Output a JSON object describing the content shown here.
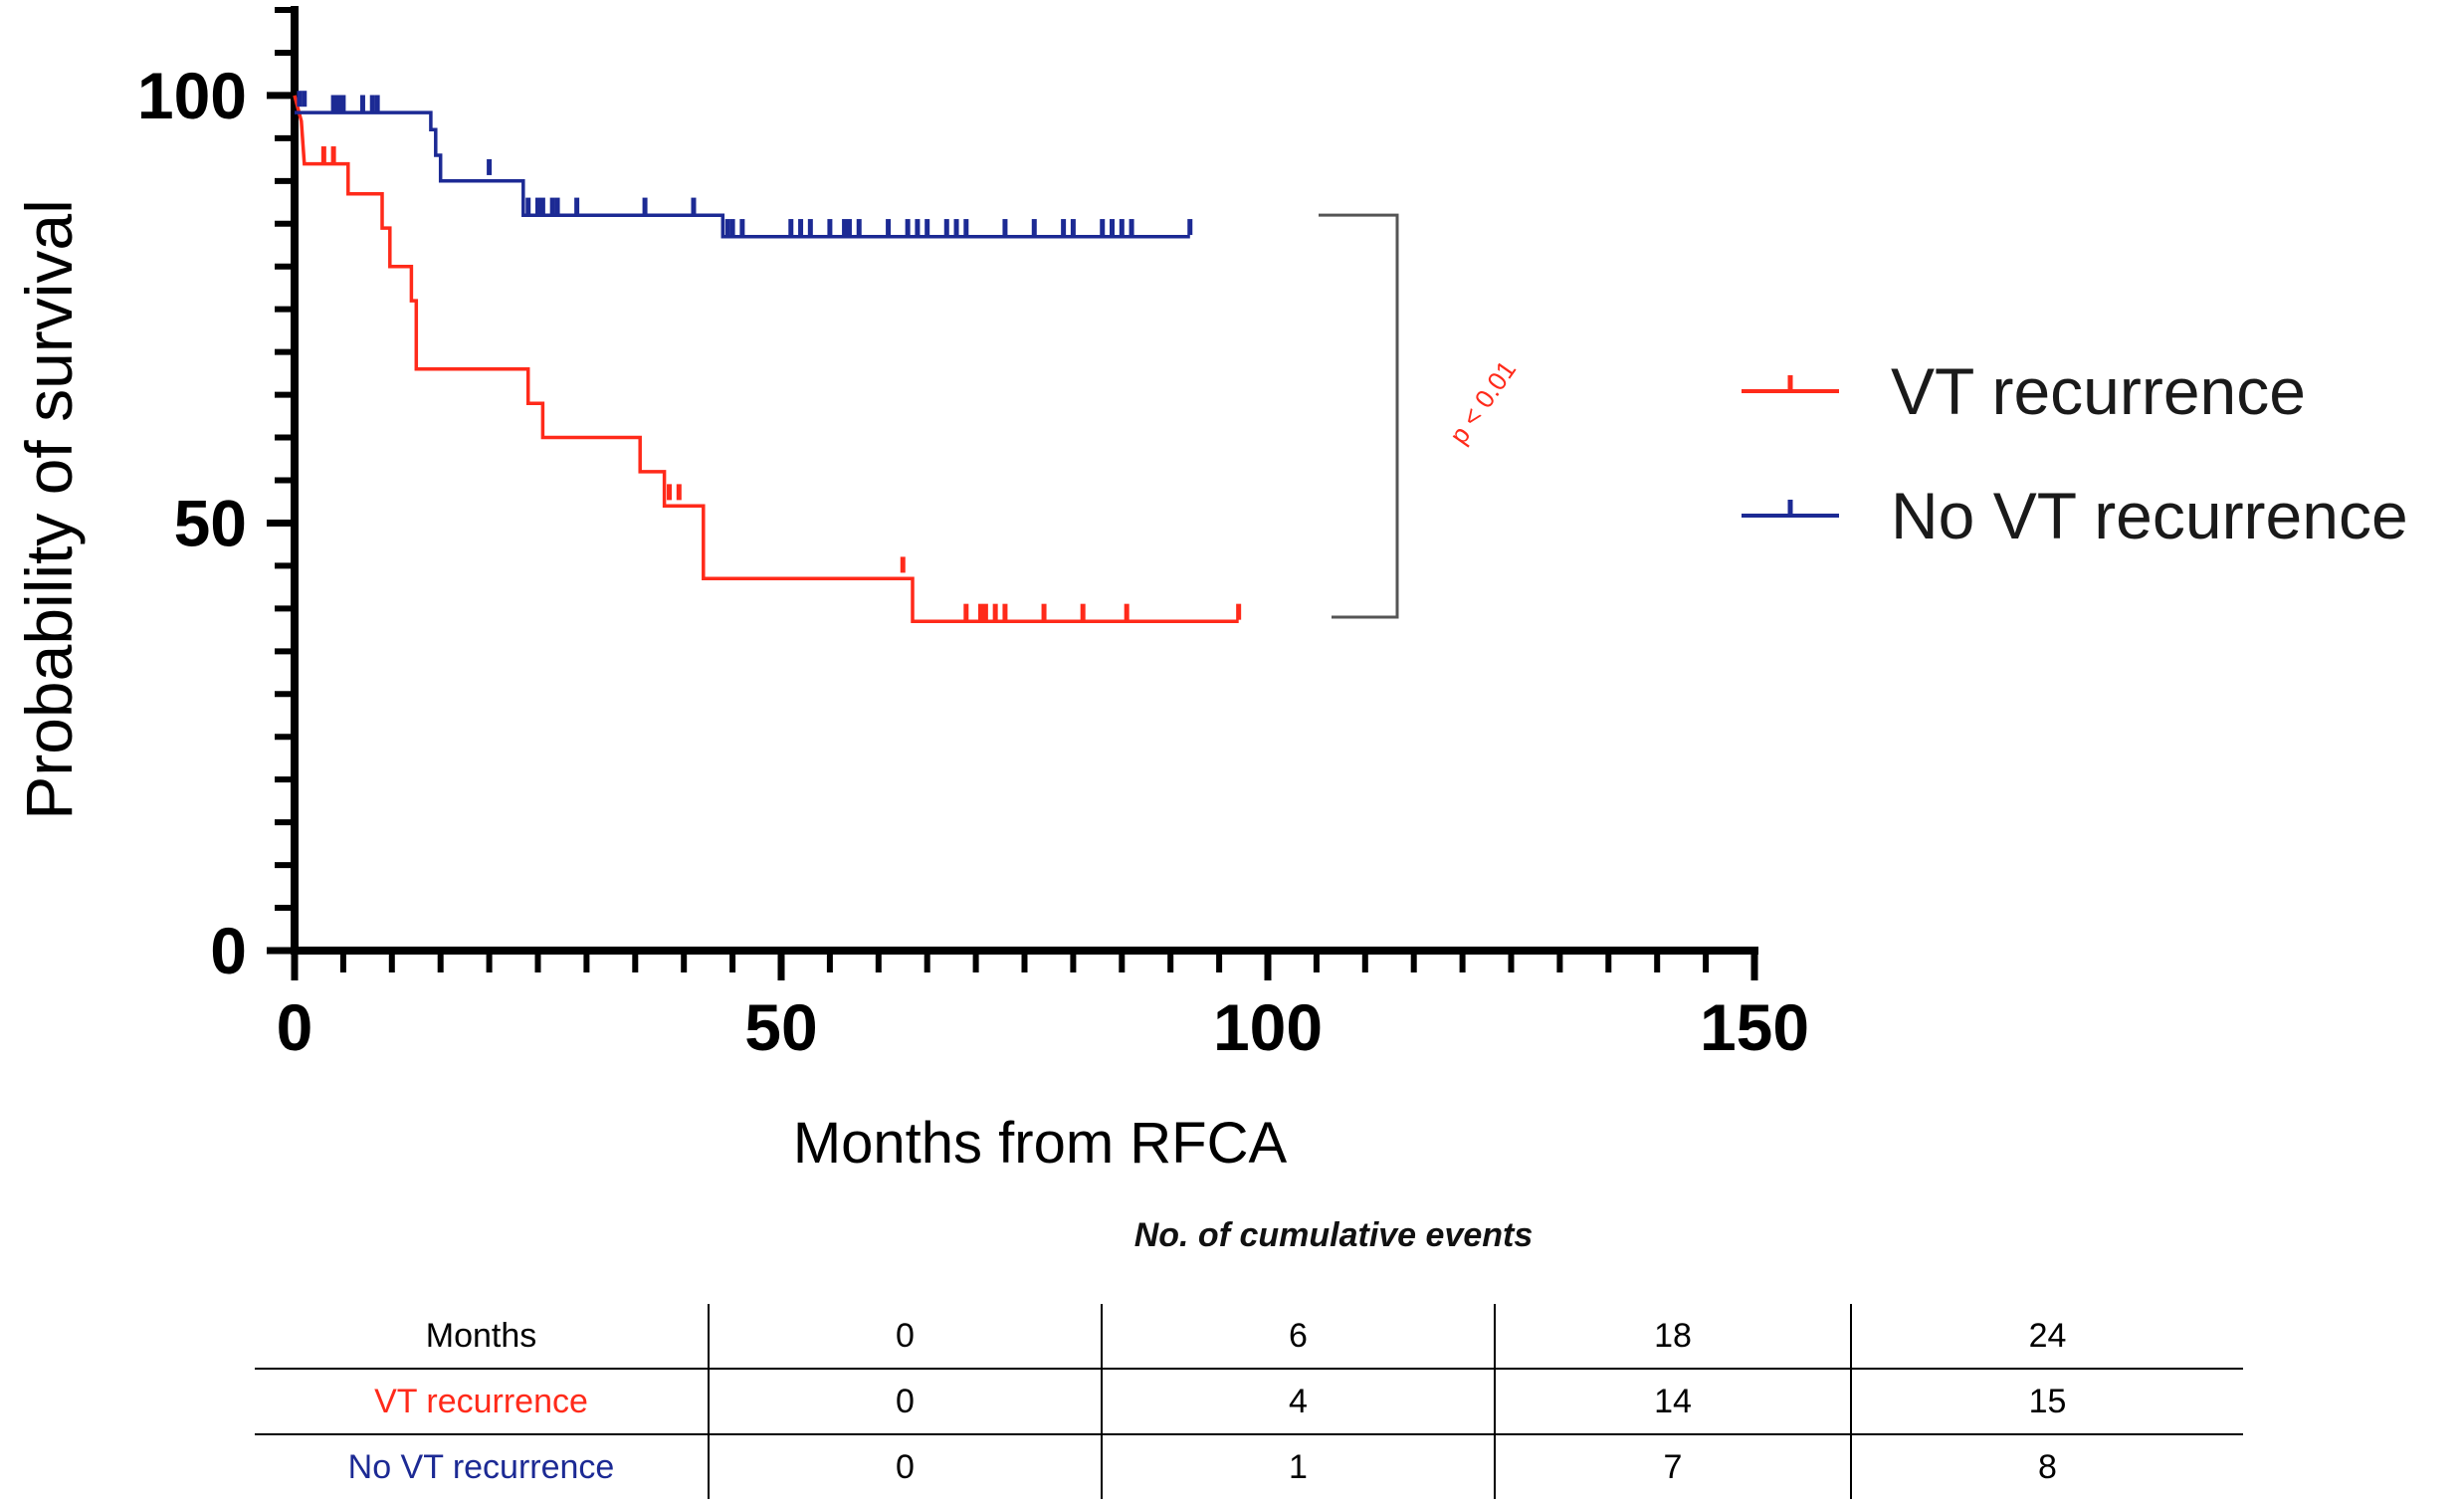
{
  "chart_data": {
    "type": "line",
    "subtype": "kaplan-meier",
    "xlabel": "Months from RFCA",
    "ylabel": "Probability of survival",
    "xlim": [
      0,
      150
    ],
    "ylim": [
      0,
      110
    ],
    "x_ticks": [
      0,
      50,
      100,
      150
    ],
    "y_ticks": [
      0,
      50,
      100
    ],
    "x_minor_step": 5,
    "y_minor_step": 5,
    "grid": false,
    "legend_position": "right",
    "series": [
      {
        "name": "VT recurrence",
        "color": "#ff2a1a",
        "steps": [
          [
            0,
            100
          ],
          [
            0.7,
            97
          ],
          [
            1,
            92
          ],
          [
            5.5,
            92
          ],
          [
            5.5,
            88.5
          ],
          [
            9,
            88.5
          ],
          [
            9,
            84.5
          ],
          [
            9.8,
            84.5
          ],
          [
            9.8,
            80
          ],
          [
            12,
            80
          ],
          [
            12,
            76
          ],
          [
            12.5,
            76
          ],
          [
            12.5,
            68
          ],
          [
            24,
            68
          ],
          [
            24,
            64
          ],
          [
            25.5,
            64
          ],
          [
            25.5,
            60
          ],
          [
            35.5,
            60
          ],
          [
            35.5,
            56
          ],
          [
            38,
            56
          ],
          [
            38,
            52
          ],
          [
            42,
            52
          ],
          [
            42,
            43.5
          ],
          [
            63.5,
            43.5
          ],
          [
            63.5,
            38.5
          ],
          [
            97,
            38.5
          ]
        ],
        "censored": [
          [
            3,
            93
          ],
          [
            4,
            93
          ],
          [
            38.5,
            53.5
          ],
          [
            39.5,
            53.5
          ],
          [
            62.5,
            45
          ],
          [
            69,
            39.5
          ],
          [
            70.5,
            39.5
          ],
          [
            71,
            39.5
          ],
          [
            72,
            39.5
          ],
          [
            73,
            39.5
          ],
          [
            77,
            39.5
          ],
          [
            81,
            39.5
          ],
          [
            85.5,
            39.5
          ],
          [
            97,
            39.5
          ]
        ]
      },
      {
        "name": "No VT recurrence",
        "color": "#1c2a94",
        "steps": [
          [
            0,
            98
          ],
          [
            14,
            98
          ],
          [
            14,
            96
          ],
          [
            14.5,
            96
          ],
          [
            14.5,
            93
          ],
          [
            15,
            93
          ],
          [
            15,
            90
          ],
          [
            23.5,
            90
          ],
          [
            23.5,
            86
          ],
          [
            44,
            86
          ],
          [
            44,
            83.5
          ],
          [
            92,
            83.5
          ]
        ],
        "censored": [
          [
            0.5,
            99.5
          ],
          [
            1,
            99.5
          ],
          [
            4,
            99
          ],
          [
            4.5,
            99
          ],
          [
            5,
            99
          ],
          [
            7,
            99
          ],
          [
            8,
            99
          ],
          [
            8.5,
            99
          ],
          [
            20,
            91.5
          ],
          [
            24,
            87
          ],
          [
            25,
            87
          ],
          [
            25.5,
            87
          ],
          [
            26.5,
            87
          ],
          [
            27,
            87
          ],
          [
            29,
            87
          ],
          [
            36,
            87
          ],
          [
            41,
            87
          ],
          [
            44.5,
            84.5
          ],
          [
            45,
            84.5
          ],
          [
            46,
            84.5
          ],
          [
            51,
            84.5
          ],
          [
            52,
            84.5
          ],
          [
            53,
            84.5
          ],
          [
            55,
            84.5
          ],
          [
            56.5,
            84.5
          ],
          [
            57,
            84.5
          ],
          [
            58,
            84.5
          ],
          [
            61,
            84.5
          ],
          [
            63,
            84.5
          ],
          [
            64,
            84.5
          ],
          [
            65,
            84.5
          ],
          [
            67,
            84.5
          ],
          [
            68,
            84.5
          ],
          [
            69,
            84.5
          ],
          [
            73,
            84.5
          ],
          [
            76,
            84.5
          ],
          [
            79,
            84.5
          ],
          [
            80,
            84.5
          ],
          [
            83,
            84.5
          ],
          [
            84,
            84.5
          ],
          [
            85,
            84.5
          ],
          [
            86,
            84.5
          ],
          [
            92,
            84.5
          ]
        ]
      }
    ],
    "annotation": {
      "text": "p < 0.01",
      "color": "#ff2a1a",
      "bracket_y_range": [
        39,
        86
      ]
    }
  },
  "events_table": {
    "caption": "No. of cumulative events",
    "header": [
      "Months",
      "0",
      "6",
      "18",
      "24"
    ],
    "rows": [
      {
        "label": "VT recurrence",
        "color": "#ff2a1a",
        "values": [
          "0",
          "4",
          "14",
          "15"
        ]
      },
      {
        "label": "No VT recurrence",
        "color": "#1c2a94",
        "values": [
          "0",
          "1",
          "7",
          "8"
        ]
      }
    ]
  }
}
